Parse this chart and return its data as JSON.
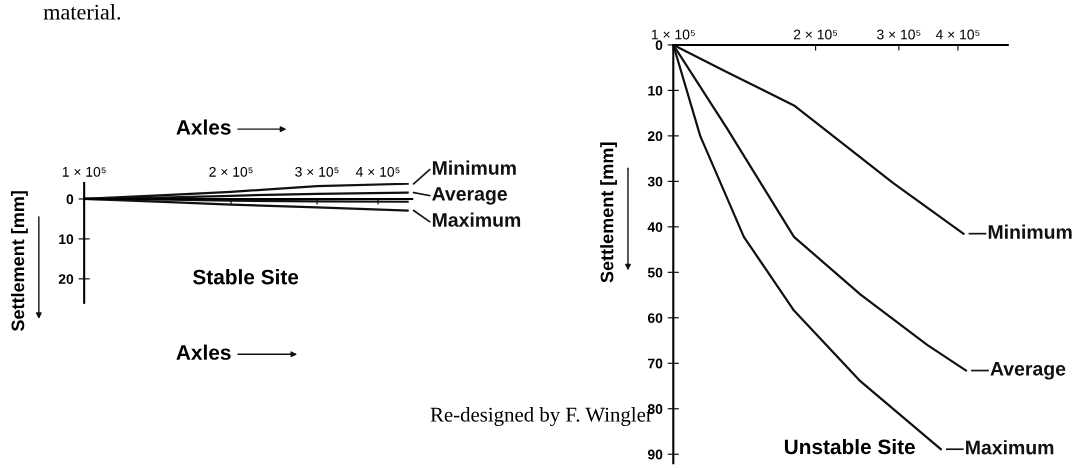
{
  "chart_data": [
    {
      "type": "line",
      "title": "Axles",
      "xlabel": "Axles",
      "ylabel": "Settlement [mm]",
      "log": "x",
      "legend": "right",
      "xlim": [
        100000,
        470000
      ],
      "ylim": [
        26,
        -4
      ],
      "xticks": [
        {
          "value": 100000,
          "label": "1 × 10⁵"
        },
        {
          "value": 200000,
          "label": "2 × 10⁵"
        },
        {
          "value": 300000,
          "label": "3 × 10⁵"
        },
        {
          "value": 400000,
          "label": "4 × 10⁵"
        }
      ],
      "yticks": [
        0,
        10,
        20
      ],
      "series": [
        {
          "name": "Minimum",
          "color": "#111111",
          "x": [
            100000,
            150000,
            200000,
            300000,
            460000
          ],
          "values": [
            0,
            -1.0,
            -1.8,
            -3.2,
            -3.8
          ]
        },
        {
          "name": "Average",
          "color": "#111111",
          "x": [
            100000,
            150000,
            200000,
            300000,
            460000
          ],
          "values": [
            0,
            -0.4,
            -0.8,
            -1.3,
            -1.6
          ]
        },
        {
          "color": "#111111",
          "x": [
            100000,
            150000,
            200000,
            300000,
            460000
          ],
          "values": [
            0,
            0.2,
            0.4,
            0.6,
            0.7
          ]
        },
        {
          "name": "Maximum",
          "color": "#111111",
          "x": [
            100000,
            150000,
            200000,
            300000,
            460000
          ],
          "values": [
            0,
            0.8,
            1.4,
            2.1,
            2.9
          ]
        }
      ],
      "annotations": [
        "Stable Site",
        "material."
      ]
    },
    {
      "type": "line",
      "ylabel": "Settlement [mm]",
      "log": "x",
      "legend": "right",
      "xlim": [
        100000,
        510000
      ],
      "ylim": [
        92,
        0
      ],
      "xticks": [
        {
          "value": 100000,
          "label": "1 × 10⁵"
        },
        {
          "value": 200000,
          "label": "2 × 10⁵"
        },
        {
          "value": 300000,
          "label": "3 × 10⁵"
        },
        {
          "value": 400000,
          "label": "4 × 10⁵"
        }
      ],
      "yticks": [
        0,
        10,
        20,
        30,
        40,
        50,
        60,
        70,
        80,
        90
      ],
      "series": [
        {
          "name": "Minimum",
          "color": "#111111",
          "x": [
            100000,
            130000,
            180000,
            292000,
            411000
          ],
          "values": [
            0,
            6,
            13.3,
            30.4,
            41.5
          ]
        },
        {
          "name": "Average",
          "color": "#111111",
          "x": [
            100000,
            130000,
            180000,
            249000,
            345000,
            416000
          ],
          "values": [
            0,
            18.4,
            42.2,
            54.9,
            66,
            71.6
          ]
        },
        {
          "name": "Maximum",
          "color": "#111111",
          "x": [
            100000,
            114000,
            141000,
            180000,
            249000,
            368000
          ],
          "values": [
            0,
            20,
            42.2,
            58.4,
            74,
            88.9
          ]
        }
      ],
      "annotations": [
        "Unstable Site",
        "Re-designed by F. Wingler"
      ]
    }
  ]
}
